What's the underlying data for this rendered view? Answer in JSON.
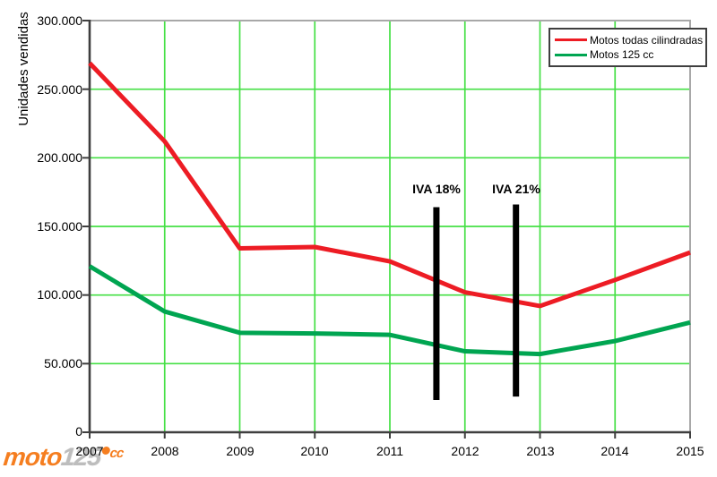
{
  "page": {
    "background": "#ffffff"
  },
  "chart_data": {
    "type": "line",
    "title": "",
    "xlabel": "",
    "ylabel": "Unidades vendidas",
    "xlim": [
      2007,
      2015
    ],
    "ylim": [
      0,
      300000
    ],
    "grid": true,
    "x": [
      2007,
      2008,
      2009,
      2010,
      2011,
      2012,
      2013,
      2014,
      2015
    ],
    "x_tick_labels": [
      "2007",
      "2008",
      "2009",
      "2010",
      "2011",
      "2012",
      "2013",
      "2014",
      "2015"
    ],
    "y_tick_values": [
      300000,
      250000,
      200000,
      150000,
      100000,
      50000,
      0
    ],
    "y_tick_labels": [
      "300.000",
      "250.000",
      "200.000",
      "150.000",
      "100.000",
      "50.000",
      "0"
    ],
    "grid_y_values": [
      50000,
      100000,
      150000,
      200000,
      250000
    ],
    "grid_x_years": [
      2008,
      2009,
      2010,
      2011,
      2012,
      2013,
      2014
    ],
    "series": [
      {
        "name": "Motos todas cilindradas",
        "color": "#ed1c24",
        "values": [
          269000,
          212000,
          134000,
          135000,
          124500,
          102000,
          92000,
          111000,
          131000
        ]
      },
      {
        "name": "Motos 125 cc",
        "color": "#00a551",
        "values": [
          121000,
          88000,
          72500,
          72000,
          71000,
          59000,
          57000,
          66500,
          80000
        ]
      }
    ],
    "annotations": [
      {
        "label": "IVA 18%",
        "x": 2011.62,
        "bar_bottom": 23500,
        "bar_top": 164000
      },
      {
        "label": "IVA 21%",
        "x": 2012.68,
        "bar_bottom": 26000,
        "bar_top": 166000
      }
    ],
    "legend": {
      "position": "top-right"
    },
    "colors": {
      "grid": "#45e045",
      "axis": "#3f3f3f",
      "border": "#a8a8a8",
      "annotation_bar": "#000000"
    }
  },
  "logo": {
    "part1": "moto",
    "part2": "125",
    "part3": "cc"
  }
}
